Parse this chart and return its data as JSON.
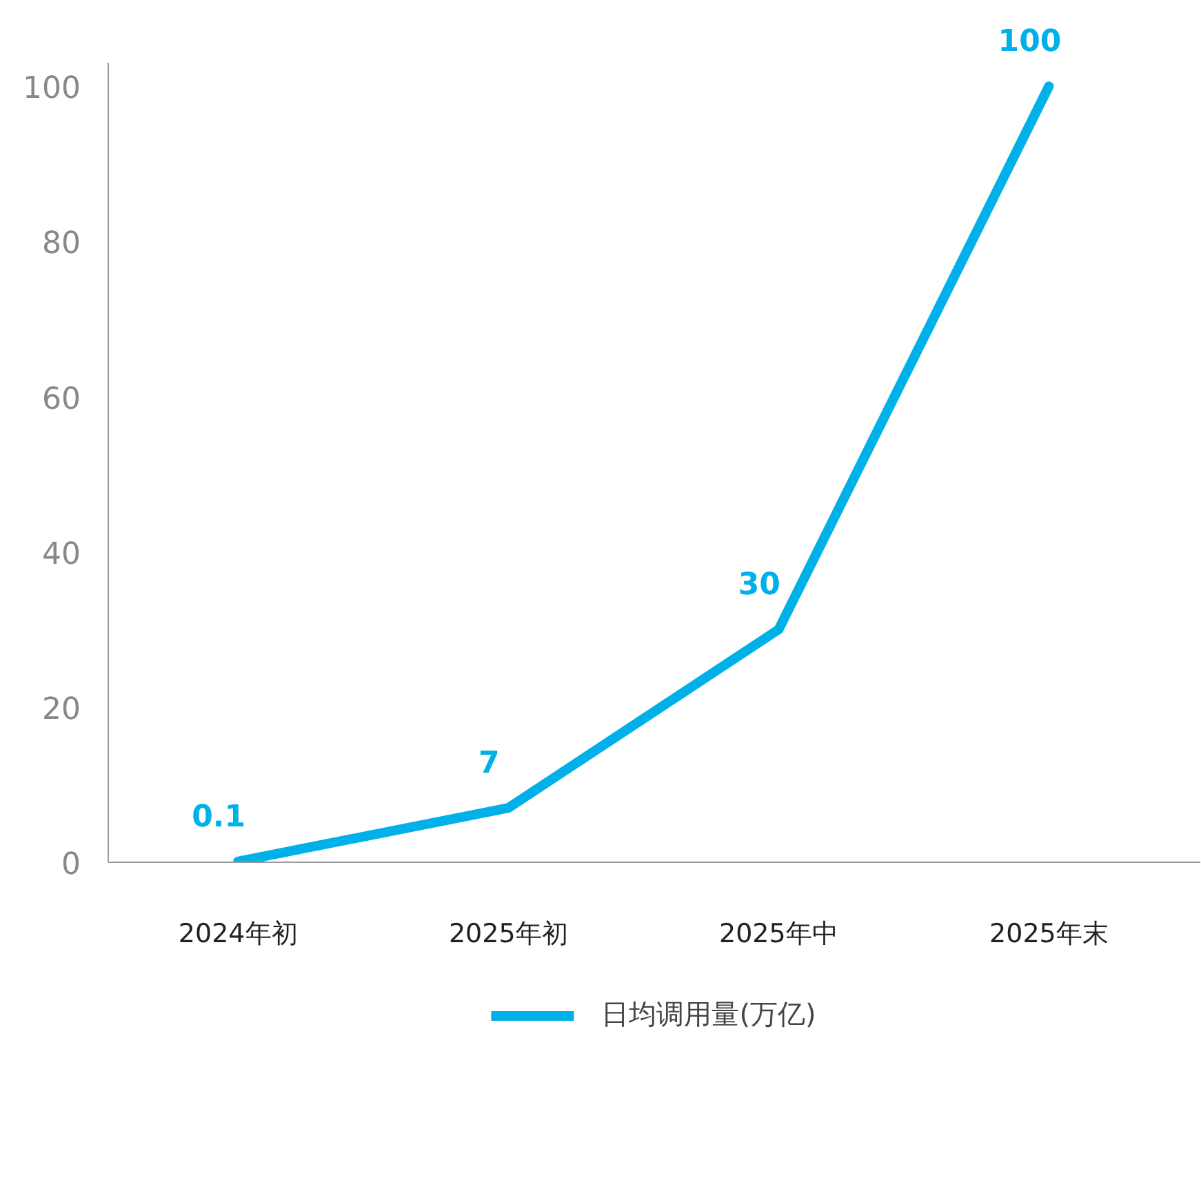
{
  "chart_data": {
    "type": "line",
    "categories": [
      "2024年初",
      "2025年初",
      "2025年中",
      "2025年末"
    ],
    "series": [
      {
        "name": "日均调用量(万亿)",
        "color": "#00b0e8",
        "values": [
          0.1,
          7,
          30,
          100
        ]
      }
    ],
    "ylim": [
      0,
      103
    ],
    "yticks": [
      0,
      20,
      40,
      60,
      80,
      100
    ],
    "data_labels": true,
    "legend": "bottom",
    "grid": false,
    "marker": "none",
    "line_style": "solid"
  }
}
